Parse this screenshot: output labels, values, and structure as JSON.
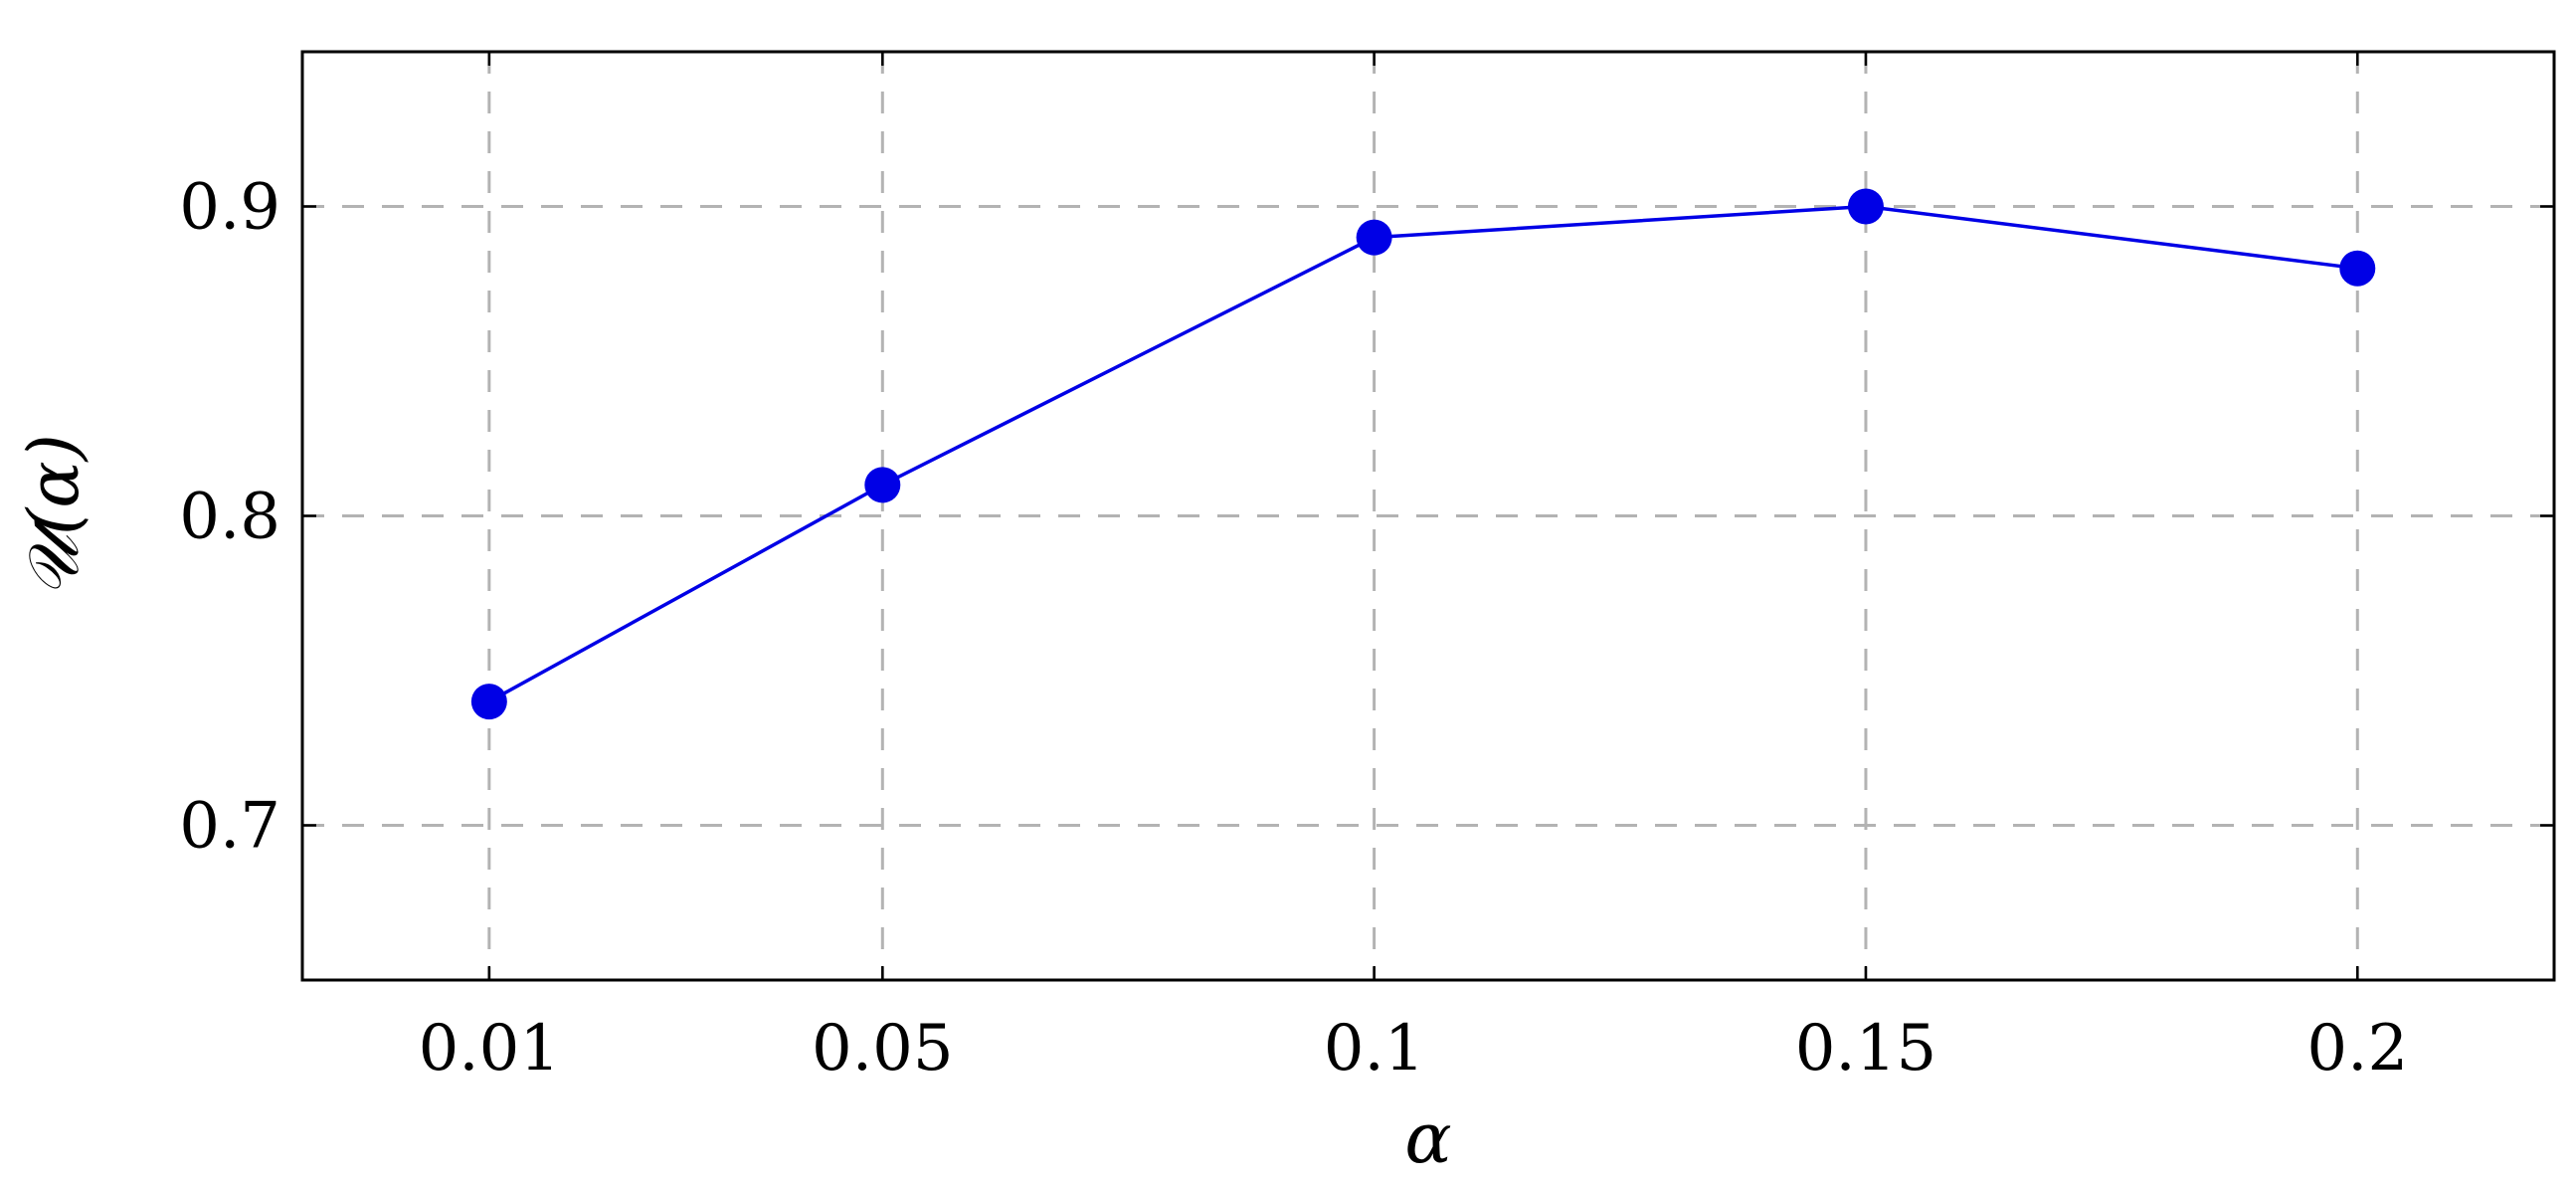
{
  "chart_data": {
    "type": "line",
    "title": "",
    "xlabel": "α",
    "ylabel": "𝒰(α)",
    "categories": [
      "0.01",
      "0.05",
      "0.1",
      "0.15",
      "0.2"
    ],
    "x": [
      0.01,
      0.05,
      0.1,
      0.15,
      0.2
    ],
    "series": [
      {
        "values": [
          0.74,
          0.81,
          0.89,
          0.9,
          0.88
        ],
        "color": "#0000e6",
        "marker": "circle"
      }
    ],
    "xlim": [
      -0.009,
      0.22
    ],
    "ylim": [
      0.65,
      0.95
    ],
    "yticks": [
      0.7,
      0.8,
      0.9
    ],
    "ytick_labels": [
      "0.7",
      "0.8",
      "0.9"
    ],
    "xtick_labels": [
      "0.01",
      "0.05",
      "0.1",
      "0.15",
      "0.2"
    ],
    "grid": true,
    "grid_style": "dashed",
    "grid_color": "#b3b3b3",
    "legend": "none"
  }
}
